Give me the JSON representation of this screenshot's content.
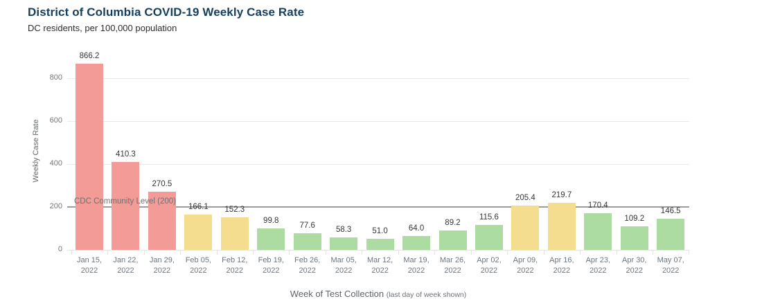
{
  "chart_data": {
    "type": "bar",
    "title": "District of Columbia COVID-19 Weekly Case Rate",
    "subtitle": "DC residents, per 100,000 population",
    "xlabel": "Week of Test Collection",
    "xlabel_note": "(last day of week shown)",
    "ylabel": "Weekly Case Rate",
    "ylim": [
      0,
      920
    ],
    "yticks": [
      0,
      200,
      400,
      600,
      800
    ],
    "grid": "horizontal",
    "categories": [
      "Jan 15, 2022",
      "Jan 22, 2022",
      "Jan 29, 2022",
      "Feb 05, 2022",
      "Feb 12, 2022",
      "Feb 19, 2022",
      "Feb 26, 2022",
      "Mar 05, 2022",
      "Mar 12, 2022",
      "Mar 19, 2022",
      "Mar 26, 2022",
      "Apr 02, 2022",
      "Apr 09, 2022",
      "Apr 16, 2022",
      "Apr 23, 2022",
      "Apr 30, 2022",
      "May 07, 2022"
    ],
    "values": [
      866.2,
      410.3,
      270.5,
      166.1,
      152.3,
      99.8,
      77.6,
      58.3,
      51.0,
      64.0,
      89.2,
      115.6,
      205.4,
      219.7,
      170.4,
      109.2,
      146.5
    ],
    "levels": [
      "high",
      "high",
      "high",
      "medium",
      "medium",
      "low",
      "low",
      "low",
      "low",
      "low",
      "low",
      "low",
      "medium",
      "medium",
      "low",
      "low",
      "low"
    ],
    "level_colors": {
      "high": "#F29B97",
      "medium": "#F4DD8E",
      "low": "#ACDCA2"
    },
    "reference_line": {
      "value": 200,
      "label": "CDC Community Level (200)",
      "color": "#9C9C9C"
    },
    "title_color": "#163F5C",
    "legend": "none"
  }
}
